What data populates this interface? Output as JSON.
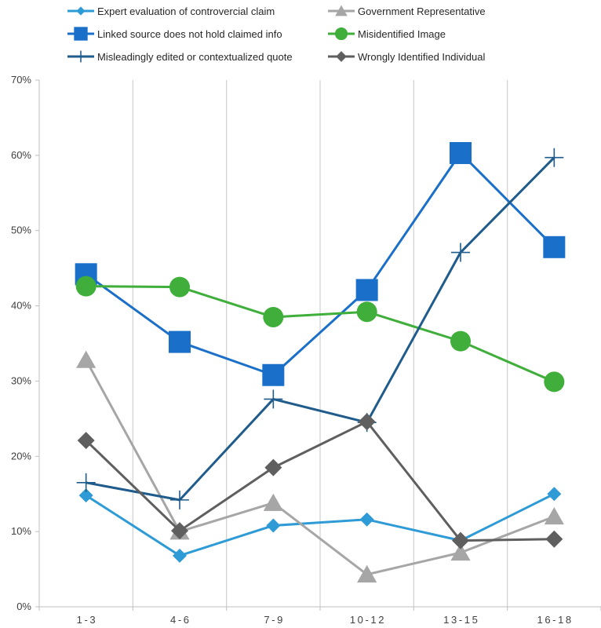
{
  "chart_data": {
    "type": "line",
    "categories": [
      "1-3",
      "4-6",
      "7-9",
      "10-12",
      "13-15",
      "16-18"
    ],
    "ylim": [
      0,
      0.7
    ],
    "yticks": [
      "0%",
      "10%",
      "20%",
      "30%",
      "40%",
      "50%",
      "60%",
      "70%"
    ],
    "grid": "vertical",
    "legend_position": "top",
    "series": [
      {
        "name": "Expert evaluation of controvercial claim",
        "color": "#2e9bd6",
        "marker": "diamond",
        "values": [
          0.148,
          0.068,
          0.108,
          0.116,
          0.088,
          0.15
        ]
      },
      {
        "name": "Government Representative",
        "color": "#a6a6a6",
        "marker": "triangle",
        "values": [
          0.328,
          0.1,
          0.138,
          0.043,
          0.072,
          0.12
        ]
      },
      {
        "name": "Linked source does not hold claimed info",
        "color": "#1a6fc9",
        "marker": "square",
        "values": [
          0.442,
          0.352,
          0.308,
          0.421,
          0.603,
          0.478
        ]
      },
      {
        "name": "Misidentified Image",
        "color": "#3fae3a",
        "marker": "circle",
        "values": [
          0.426,
          0.425,
          0.385,
          0.392,
          0.353,
          0.299
        ]
      },
      {
        "name": "Misleadingly edited or contextualized quote",
        "color": "#1f5c8c",
        "marker": "plus",
        "values": [
          0.165,
          0.142,
          0.276,
          0.245,
          0.471,
          0.597
        ]
      },
      {
        "name": "Wrongly Identified Individual",
        "color": "#5f5f5f",
        "marker": "diamond",
        "values": [
          0.221,
          0.101,
          0.185,
          0.246,
          0.088,
          0.09
        ]
      }
    ]
  }
}
